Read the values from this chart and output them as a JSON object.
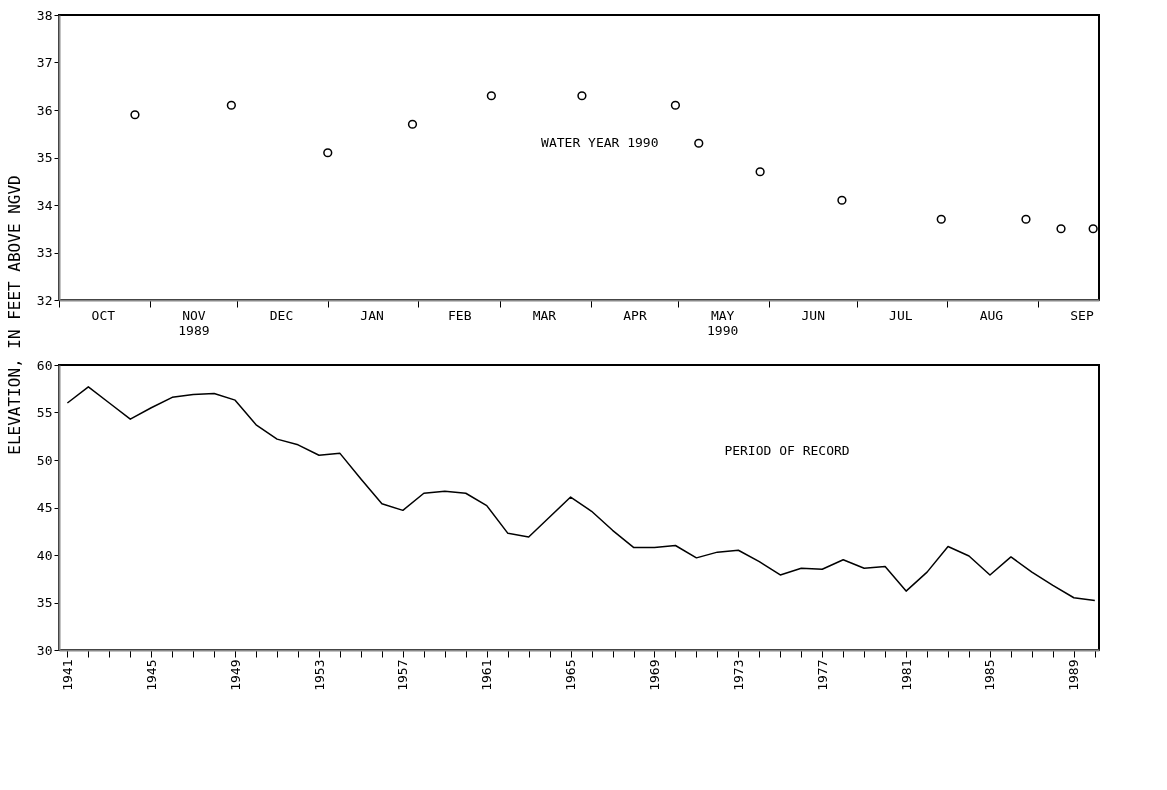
{
  "chart_data": [
    {
      "type": "scatter",
      "ylabel": "ELEVATION, IN FEET ABOVE NGVD",
      "annotations": [
        "WATER YEAR 1990"
      ],
      "marker": "circle",
      "grid": false,
      "legend": false,
      "x": [
        "1989-10-27",
        "1989-11-29",
        "1990-01-01",
        "1990-01-30",
        "1990-02-26",
        "1990-03-29",
        "1990-04-30",
        "1990-05-08",
        "1990-05-29",
        "1990-06-26",
        "1990-07-30",
        "1990-08-28",
        "1990-09-09",
        "1990-09-20"
      ],
      "series": [
        {
          "color": "#000000",
          "values": [
            35.9,
            36.1,
            35.1,
            35.7,
            36.3,
            36.3,
            36.1,
            35.3,
            34.7,
            34.1,
            33.7,
            33.7,
            33.5,
            33.5
          ]
        }
      ],
      "xlim": [
        "1989-10-01",
        "1990-09-22"
      ],
      "xticks": [
        {
          "value": "1989-10-01",
          "label": null
        },
        {
          "value": "1989-10-16",
          "label": "OCT"
        },
        {
          "value": "1989-11-01",
          "label": null
        },
        {
          "value": "1989-11-16",
          "label": "NOV\n1989"
        },
        {
          "value": "1989-12-01",
          "label": null
        },
        {
          "value": "1989-12-16",
          "label": "DEC"
        },
        {
          "value": "1990-01-01",
          "label": null
        },
        {
          "value": "1990-01-16",
          "label": "JAN"
        },
        {
          "value": "1990-02-01",
          "label": null
        },
        {
          "value": "1990-02-15",
          "label": "FEB"
        },
        {
          "value": "1990-03-01",
          "label": null
        },
        {
          "value": "1990-03-16",
          "label": "MAR"
        },
        {
          "value": "1990-04-01",
          "label": null
        },
        {
          "value": "1990-04-16",
          "label": "APR"
        },
        {
          "value": "1990-05-01",
          "label": null
        },
        {
          "value": "1990-05-16",
          "label": "MAY\n1990"
        },
        {
          "value": "1990-06-01",
          "label": null
        },
        {
          "value": "1990-06-16",
          "label": "JUN"
        },
        {
          "value": "1990-07-01",
          "label": null
        },
        {
          "value": "1990-07-16",
          "label": "JUL"
        },
        {
          "value": "1990-08-01",
          "label": null
        },
        {
          "value": "1990-08-16",
          "label": "AUG"
        },
        {
          "value": "1990-09-01",
          "label": null
        },
        {
          "value": "1990-09-16",
          "label": "SEP"
        }
      ],
      "ylim": [
        32,
        38
      ],
      "yticks": [
        32,
        33,
        34,
        35,
        36,
        37,
        38
      ]
    },
    {
      "type": "line",
      "annotations": [
        "PERIOD OF RECORD"
      ],
      "grid": false,
      "legend": false,
      "line_style": "solid",
      "x": [
        1941,
        1942,
        1943,
        1944,
        1945,
        1946,
        1947,
        1948,
        1949,
        1950,
        1951,
        1952,
        1953,
        1954,
        1955,
        1956,
        1957,
        1958,
        1959,
        1960,
        1961,
        1962,
        1963,
        1964,
        1965,
        1966,
        1967,
        1968,
        1969,
        1970,
        1971,
        1972,
        1973,
        1974,
        1975,
        1976,
        1977,
        1978,
        1979,
        1980,
        1981,
        1982,
        1983,
        1984,
        1985,
        1986,
        1987,
        1988,
        1989,
        1990
      ],
      "series": [
        {
          "color": "#000000",
          "values": [
            56.0,
            57.7,
            56.0,
            54.3,
            55.5,
            56.6,
            56.9,
            57.0,
            56.3,
            53.7,
            52.2,
            51.6,
            50.5,
            50.7,
            48.0,
            45.4,
            44.7,
            46.5,
            46.7,
            46.5,
            45.2,
            42.3,
            41.9,
            44.0,
            46.1,
            44.6,
            42.6,
            40.8,
            40.8,
            41.0,
            39.7,
            40.3,
            40.5,
            39.3,
            37.9,
            38.6,
            38.5,
            39.5,
            38.6,
            38.8,
            36.2,
            38.2,
            40.9,
            39.9,
            37.9,
            39.8,
            38.2,
            36.8,
            35.5,
            35.2
          ]
        }
      ],
      "xlim": [
        1940.6,
        1990.2
      ],
      "xticks": [
        1941,
        {
          "value": 1942,
          "label": null
        },
        {
          "value": 1943,
          "label": null
        },
        {
          "value": 1944,
          "label": null
        },
        1945,
        {
          "value": 1946,
          "label": null
        },
        {
          "value": 1947,
          "label": null
        },
        {
          "value": 1948,
          "label": null
        },
        1949,
        {
          "value": 1950,
          "label": null
        },
        {
          "value": 1951,
          "label": null
        },
        {
          "value": 1952,
          "label": null
        },
        1953,
        {
          "value": 1954,
          "label": null
        },
        {
          "value": 1955,
          "label": null
        },
        {
          "value": 1956,
          "label": null
        },
        1957,
        {
          "value": 1958,
          "label": null
        },
        {
          "value": 1959,
          "label": null
        },
        {
          "value": 1960,
          "label": null
        },
        1961,
        {
          "value": 1962,
          "label": null
        },
        {
          "value": 1963,
          "label": null
        },
        {
          "value": 1964,
          "label": null
        },
        1965,
        {
          "value": 1966,
          "label": null
        },
        {
          "value": 1967,
          "label": null
        },
        {
          "value": 1968,
          "label": null
        },
        1969,
        {
          "value": 1970,
          "label": null
        },
        {
          "value": 1971,
          "label": null
        },
        {
          "value": 1972,
          "label": null
        },
        1973,
        {
          "value": 1974,
          "label": null
        },
        {
          "value": 1975,
          "label": null
        },
        {
          "value": 1976,
          "label": null
        },
        1977,
        {
          "value": 1978,
          "label": null
        },
        {
          "value": 1979,
          "label": null
        },
        {
          "value": 1980,
          "label": null
        },
        1981,
        {
          "value": 1982,
          "label": null
        },
        {
          "value": 1983,
          "label": null
        },
        {
          "value": 1984,
          "label": null
        },
        1985,
        {
          "value": 1986,
          "label": null
        },
        {
          "value": 1987,
          "label": null
        },
        {
          "value": 1988,
          "label": null
        },
        1989,
        {
          "value": 1990,
          "label": null
        }
      ],
      "ylim": [
        30,
        60
      ],
      "yticks": [
        30,
        35,
        40,
        45,
        50,
        55,
        60
      ]
    }
  ]
}
